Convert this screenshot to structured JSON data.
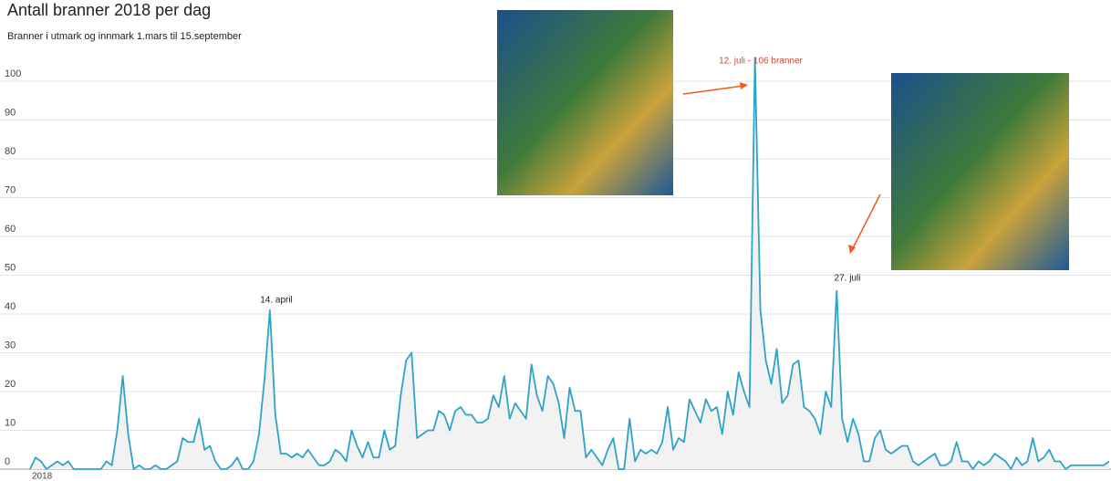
{
  "chart_data": {
    "type": "line",
    "title": "Antall branner 2018 per dag",
    "subtitle": "Branner i utmark og innmark 1.mars til 15.september",
    "xlabel": "2018",
    "color": "#2ea3c9",
    "area_color": "#f2f2f2",
    "ylim": [
      0,
      110
    ],
    "yticks": [
      0,
      10,
      20,
      30,
      40,
      50,
      60,
      70,
      80,
      90,
      100
    ],
    "grid": true,
    "annotations": [
      "14. april",
      "12. juli - 106 branner",
      "27. juli"
    ],
    "values": [
      0,
      3,
      2,
      0,
      1,
      2,
      1,
      2,
      0,
      0,
      0,
      0,
      0,
      0,
      2,
      1,
      10,
      24,
      9,
      0,
      1,
      0,
      0,
      1,
      0,
      0,
      1,
      2,
      8,
      7,
      7,
      13,
      5,
      6,
      2,
      0,
      0,
      1,
      3,
      0,
      0,
      2,
      9,
      23,
      41,
      14,
      4,
      4,
      3,
      4,
      3,
      5,
      3,
      1,
      1,
      2,
      5,
      4,
      2,
      10,
      6,
      3,
      7,
      3,
      3,
      10,
      5,
      6,
      19,
      28,
      30,
      8,
      9,
      10,
      10,
      15,
      14,
      10,
      15,
      16,
      14,
      14,
      12,
      12,
      13,
      19,
      16,
      24,
      13,
      17,
      15,
      13,
      27,
      19,
      15,
      24,
      22,
      17,
      8,
      21,
      15,
      15,
      3,
      5,
      3,
      1,
      5,
      8,
      0,
      0,
      13,
      2,
      5,
      4,
      5,
      4,
      7,
      16,
      5,
      8,
      7,
      18,
      15,
      12,
      18,
      15,
      16,
      9,
      20,
      14,
      25,
      20,
      16,
      106,
      41,
      28,
      22,
      31,
      17,
      19,
      27,
      28,
      16,
      15,
      13,
      9,
      20,
      16,
      46,
      13,
      7,
      13,
      9,
      2,
      2,
      8,
      10,
      5,
      4,
      5,
      6,
      6,
      2,
      1,
      2,
      3,
      4,
      1,
      1,
      2,
      7,
      2,
      2,
      0,
      2,
      1,
      2,
      4,
      3,
      2,
      0,
      3,
      1,
      2,
      8,
      2,
      3,
      5,
      2,
      2,
      0,
      1,
      1,
      1,
      1,
      1,
      1,
      1,
      2
    ]
  }
}
